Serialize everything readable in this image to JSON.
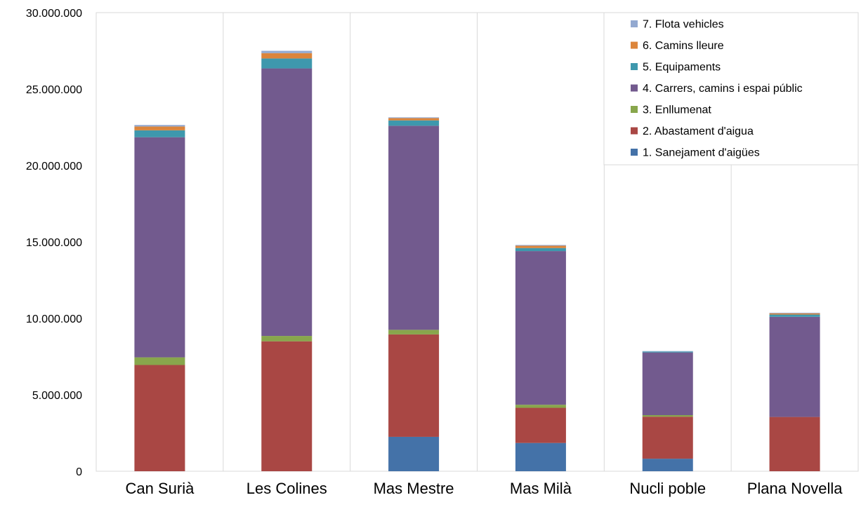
{
  "chart_data": {
    "type": "bar",
    "stacked": true,
    "categories": [
      "Can Surià",
      "Les Colines",
      "Mas Mestre",
      "Mas Milà",
      "Nucli poble",
      "Plana Novella"
    ],
    "ylim": [
      0,
      30000000
    ],
    "yticks": [
      0,
      5000000,
      10000000,
      15000000,
      20000000,
      25000000,
      30000000
    ],
    "ytick_labels": [
      "0",
      "5.000.000",
      "10.000.000",
      "15.000.000",
      "20.000.000",
      "25.000.000",
      "30.000.000"
    ],
    "grid": "vertical",
    "legend_position": "top-right",
    "series": [
      {
        "name": "1. Sanejament d'aigües",
        "color": "#4472a8",
        "values": [
          0,
          0,
          2250000,
          1850000,
          820000,
          0
        ]
      },
      {
        "name": "2. Abastament d'aigua",
        "color": "#a94744",
        "values": [
          6950000,
          8500000,
          6700000,
          2300000,
          2750000,
          3550000
        ]
      },
      {
        "name": "3. Enllumenat",
        "color": "#88a64c",
        "values": [
          500000,
          350000,
          300000,
          200000,
          100000,
          0
        ]
      },
      {
        "name": "4. Carrers, camins i espai públic",
        "color": "#725a8e",
        "values": [
          14400000,
          17500000,
          13350000,
          10050000,
          4100000,
          6550000
        ]
      },
      {
        "name": "5. Equipaments",
        "color": "#3e98ad",
        "values": [
          450000,
          650000,
          350000,
          200000,
          60000,
          150000
        ]
      },
      {
        "name": "6. Camins lleure",
        "color": "#dc853b",
        "values": [
          250000,
          350000,
          150000,
          150000,
          0,
          80000
        ]
      },
      {
        "name": "7. Flota vehicles",
        "color": "#93a9d0",
        "values": [
          100000,
          150000,
          50000,
          50000,
          30000,
          40000
        ]
      }
    ]
  }
}
